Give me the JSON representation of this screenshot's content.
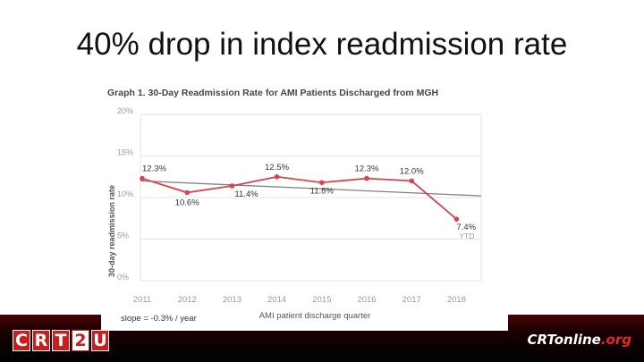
{
  "slide": {
    "title": "40% drop in index readmission rate"
  },
  "colors": {
    "series": "#d9434e",
    "trend": "#808080",
    "grid": "#e4e4e4",
    "axis_text": "#9a9a9a",
    "label_text": "#333333"
  },
  "chart_data": {
    "type": "line",
    "title": "Graph 1. 30-Day Readmission Rate for AMI Patients Discharged from MGH",
    "xlabel": "AMI patient discharge quarter",
    "ylabel": "30-day readmission rate",
    "categories": [
      "2011",
      "2012",
      "2013",
      "2014",
      "2015",
      "2016",
      "2017",
      "2018"
    ],
    "series": [
      {
        "name": "Readmission rate",
        "values": [
          12.3,
          10.6,
          11.4,
          12.5,
          11.8,
          12.3,
          12.0,
          7.4
        ]
      }
    ],
    "data_labels": [
      "12.3%",
      "10.6%",
      "11.4%",
      "12.5%",
      "11.8%",
      "12.3%",
      "12.0%",
      "7.4%"
    ],
    "ytd_label": "YTD",
    "trendline": {
      "start": 12.0,
      "end": 10.2,
      "slope_label": "slope = -0.3% / year"
    },
    "yticks": [
      0,
      5,
      10,
      15,
      20
    ],
    "ytick_labels": [
      "0%",
      "5%",
      "10%",
      "15%",
      "20%"
    ],
    "ylim": [
      0,
      20
    ],
    "grid": true
  },
  "footer": {
    "left_logo_letters": [
      "C",
      "R",
      "T",
      "2",
      "U"
    ],
    "right_logo_main": "CRTonline",
    "right_logo_suffix": ".org"
  }
}
